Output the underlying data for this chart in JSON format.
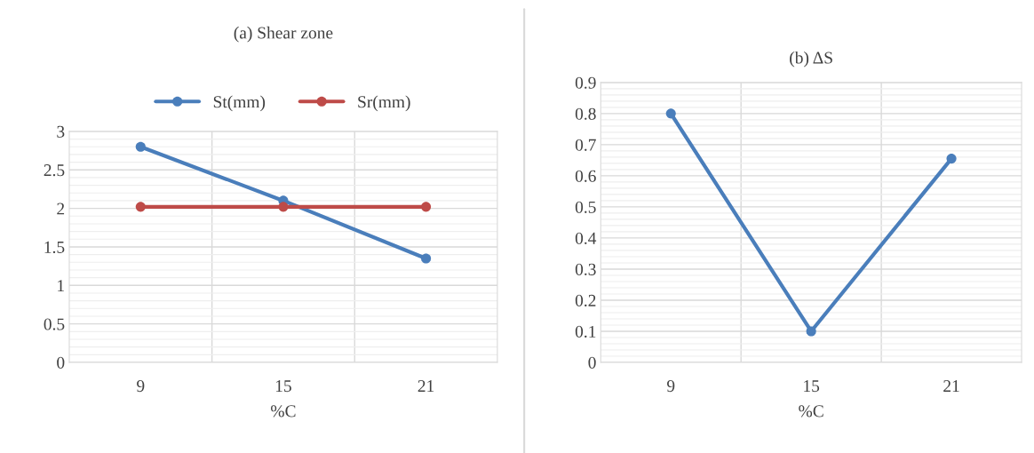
{
  "chart_data": [
    {
      "type": "line",
      "title": "(a) Shear zone",
      "xlabel": "%C",
      "categories": [
        "9",
        "15",
        "21"
      ],
      "series": [
        {
          "name": "St(mm)",
          "color": "#4a7ebb",
          "values": [
            2.8,
            2.1,
            1.35
          ]
        },
        {
          "name": "Sr(mm)",
          "color": "#be4b48",
          "values": [
            2.02,
            2.02,
            2.02
          ]
        }
      ],
      "ylim": [
        0,
        3
      ],
      "yticks": [
        0,
        0.5,
        1,
        1.5,
        2,
        2.5,
        3
      ],
      "grid": true,
      "legend": "top",
      "marker": "circle",
      "line_style": "solid"
    },
    {
      "type": "line",
      "title": "(b) ΔS",
      "xlabel": "%C",
      "categories": [
        "9",
        "15",
        "21"
      ],
      "series": [
        {
          "color": "#4a7ebb",
          "values": [
            0.8,
            0.1,
            0.655
          ]
        }
      ],
      "ylim": [
        0,
        0.9
      ],
      "yticks": [
        0,
        0.1,
        0.2,
        0.3,
        0.4,
        0.5,
        0.6,
        0.7,
        0.8,
        0.9
      ],
      "grid": true,
      "marker": "circle",
      "line_style": "solid"
    }
  ]
}
